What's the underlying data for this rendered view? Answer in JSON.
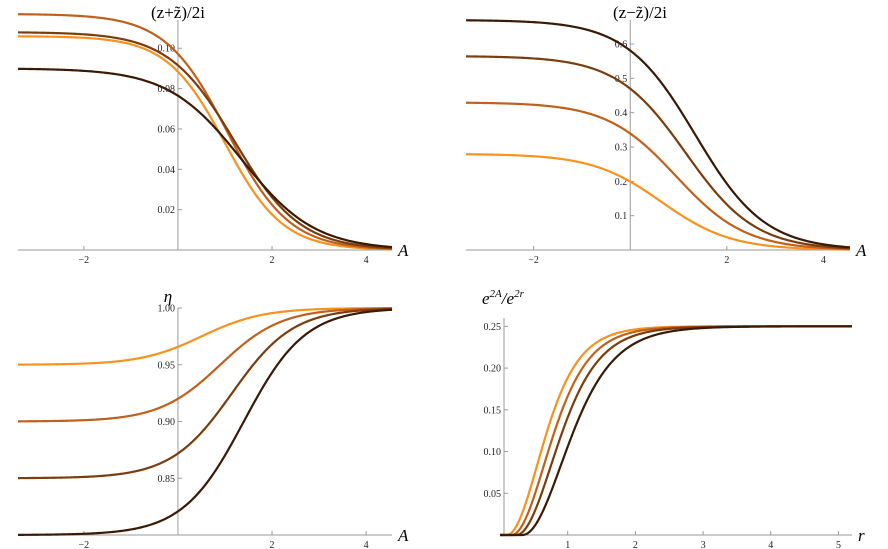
{
  "chart_data": [
    {
      "id": "panel-re",
      "type": "line",
      "title": "(z+z̃)/2i",
      "xlabel": "A",
      "ylabel": "",
      "xlim": [
        -3.4,
        4.55
      ],
      "ylim": [
        0,
        0.114
      ],
      "xticks": [
        -2,
        2,
        4
      ],
      "xtick_labels": [
        "−2",
        "2",
        "4"
      ],
      "yticks": [
        0.02,
        0.04,
        0.06,
        0.08,
        0.1
      ],
      "ytick_labels": [
        "0.02",
        "0.04",
        "0.06",
        "0.08",
        "0.10"
      ],
      "curve": "fall",
      "series": [
        {
          "name": "curve-1",
          "color": "#F7921E",
          "start": 0.106,
          "end": 0,
          "center": 1.0,
          "width": 0.62
        },
        {
          "name": "curve-2",
          "color": "#C0601A",
          "start": 0.117,
          "end": 0,
          "center": 1.05,
          "width": 0.66
        },
        {
          "name": "curve-3",
          "color": "#7A3D0D",
          "start": 0.108,
          "end": 0,
          "center": 1.2,
          "width": 0.7
        },
        {
          "name": "curve-4",
          "color": "#3A1A05",
          "start": 0.09,
          "end": 0,
          "center": 1.35,
          "width": 0.78
        }
      ]
    },
    {
      "id": "panel-im",
      "type": "line",
      "title": "(z−z̃)/2i",
      "xlabel": "A",
      "ylabel": "",
      "xlim": [
        -3.4,
        4.55
      ],
      "ylim": [
        0,
        0.67
      ],
      "xticks": [
        -2,
        2,
        4
      ],
      "xtick_labels": [
        "−2",
        "2",
        "4"
      ],
      "yticks": [
        0.1,
        0.2,
        0.3,
        0.4,
        0.5,
        0.6
      ],
      "ytick_labels": [
        "0.1",
        "0.2",
        "0.3",
        "0.4",
        "0.5",
        "0.6"
      ],
      "curve": "fall",
      "series": [
        {
          "name": "curve-1",
          "color": "#F7921E",
          "start": 0.28,
          "end": 0,
          "center": 0.65,
          "width": 0.72
        },
        {
          "name": "curve-2",
          "color": "#C0601A",
          "start": 0.43,
          "end": 0,
          "center": 0.95,
          "width": 0.72
        },
        {
          "name": "curve-3",
          "color": "#7A3D0D",
          "start": 0.565,
          "end": 0,
          "center": 1.15,
          "width": 0.72
        },
        {
          "name": "curve-4",
          "color": "#3A1A05",
          "start": 0.67,
          "end": 0,
          "center": 1.35,
          "width": 0.72
        }
      ]
    },
    {
      "id": "panel-eta",
      "type": "line",
      "title": "η",
      "xlabel": "A",
      "ylabel": "",
      "xlim": [
        -3.4,
        4.55
      ],
      "ylim": [
        0.8,
        1.0
      ],
      "xticks": [
        -2,
        2,
        4
      ],
      "xtick_labels": [
        "−2",
        "2",
        "4"
      ],
      "yticks": [
        0.85,
        0.9,
        0.95,
        1.0
      ],
      "ytick_labels": [
        "0.85",
        "0.90",
        "0.95",
        "1.00"
      ],
      "curve": "rise",
      "series": [
        {
          "name": "curve-1",
          "color": "#F7921E",
          "start": 0.95,
          "end": 1.0,
          "center": 0.5,
          "width": 0.65
        },
        {
          "name": "curve-2",
          "color": "#C0601A",
          "start": 0.9,
          "end": 1.0,
          "center": 0.9,
          "width": 0.65
        },
        {
          "name": "curve-3",
          "color": "#7A3D0D",
          "start": 0.85,
          "end": 1.0,
          "center": 1.15,
          "width": 0.65
        },
        {
          "name": "curve-4",
          "color": "#3A1A05",
          "start": 0.8,
          "end": 1.0,
          "center": 1.4,
          "width": 0.65
        }
      ]
    },
    {
      "id": "panel-exp",
      "type": "line",
      "title": "e^{2A}/e^{2r}",
      "xlabel": "r",
      "ylabel": "",
      "xlim": [
        0,
        5.2
      ],
      "ylim": [
        0,
        0.26
      ],
      "xticks": [
        1,
        2,
        3,
        4,
        5
      ],
      "xtick_labels": [
        "1",
        "2",
        "3",
        "4",
        "5"
      ],
      "yticks": [
        0.05,
        0.1,
        0.15,
        0.2,
        0.25
      ],
      "ytick_labels": [
        "0.05",
        "0.10",
        "0.15",
        "0.20",
        "0.25"
      ],
      "curve": "saturate",
      "series": [
        {
          "name": "curve-1",
          "color": "#F7921E",
          "start": 0.0,
          "end": 0.25,
          "r0": 0.1,
          "rate": 1.55
        },
        {
          "name": "curve-2",
          "color": "#C0601A",
          "start": 0.0,
          "end": 0.25,
          "r0": 0.17,
          "rate": 1.45
        },
        {
          "name": "curve-3",
          "color": "#7A3D0D",
          "start": 0.0,
          "end": 0.25,
          "r0": 0.24,
          "rate": 1.35
        },
        {
          "name": "curve-4",
          "color": "#3A1A05",
          "start": 0.0,
          "end": 0.25,
          "r0": 0.33,
          "rate": 1.22
        }
      ]
    }
  ]
}
